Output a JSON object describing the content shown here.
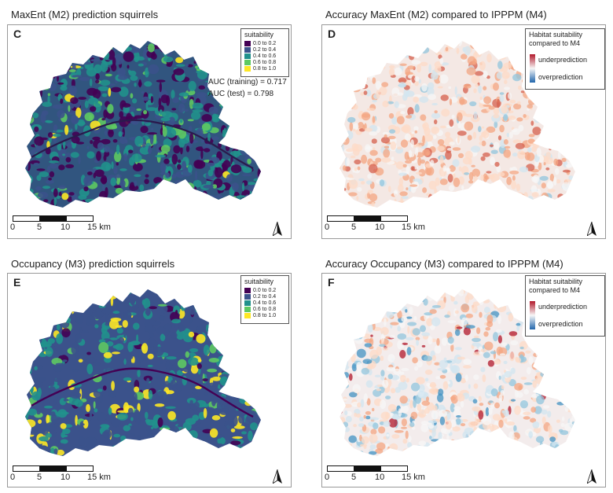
{
  "panels": [
    {
      "title": "MaxEnt (M2) prediction squirrels",
      "letter": "C",
      "legend_title": "suitability",
      "legend_items": [
        {
          "label": "0.0 to 0.2",
          "color": "#440154"
        },
        {
          "label": "0.2 to 0.4",
          "color": "#3b528b"
        },
        {
          "label": "0.4 to 0.6",
          "color": "#21918c"
        },
        {
          "label": "0.6 to 0.8",
          "color": "#5ec962"
        },
        {
          "label": "0.8 to 1.0",
          "color": "#fde725"
        }
      ],
      "auc_training": "AUC (training) = 0.717",
      "auc_test": "AUC (test) = 0.798",
      "scale_labels": [
        "0",
        "5",
        "10",
        "15 km"
      ]
    },
    {
      "title": "Accuracy MaxEnt (M2) compared to IPPPM (M4)",
      "letter": "D",
      "legend_title_1": "Habitat suitability",
      "legend_title_2": "compared to M4",
      "legend_under": "underprediction",
      "legend_over": "overprediction",
      "scale_labels": [
        "0",
        "5",
        "10",
        "15 km"
      ]
    },
    {
      "title": "Occupancy (M3) prediction squirrels",
      "letter": "E",
      "legend_title": "suitability",
      "legend_items": [
        {
          "label": "0.0 to 0.2",
          "color": "#440154"
        },
        {
          "label": "0.2 to 0.4",
          "color": "#3b528b"
        },
        {
          "label": "0.4 to 0.6",
          "color": "#21918c"
        },
        {
          "label": "0.6 to 0.8",
          "color": "#5ec962"
        },
        {
          "label": "0.8 to 1.0",
          "color": "#fde725"
        }
      ],
      "scale_labels": [
        "0",
        "5",
        "10",
        "15 km"
      ]
    },
    {
      "title": "Accuracy Occupancy (M3) compared to IPPPM (M4)",
      "letter": "F",
      "legend_title_1": "Habitat suitability",
      "legend_title_2": "compared to M4",
      "legend_under": "underprediction",
      "legend_over": "overprediction",
      "scale_labels": [
        "0",
        "5",
        "10",
        "15 km"
      ]
    }
  ],
  "colors": {
    "viridis": [
      "#440154",
      "#3b528b",
      "#21918c",
      "#5ec962",
      "#fde725"
    ],
    "under": "#b2182b",
    "over": "#2166ac",
    "neutral": "#f7f7f7"
  }
}
